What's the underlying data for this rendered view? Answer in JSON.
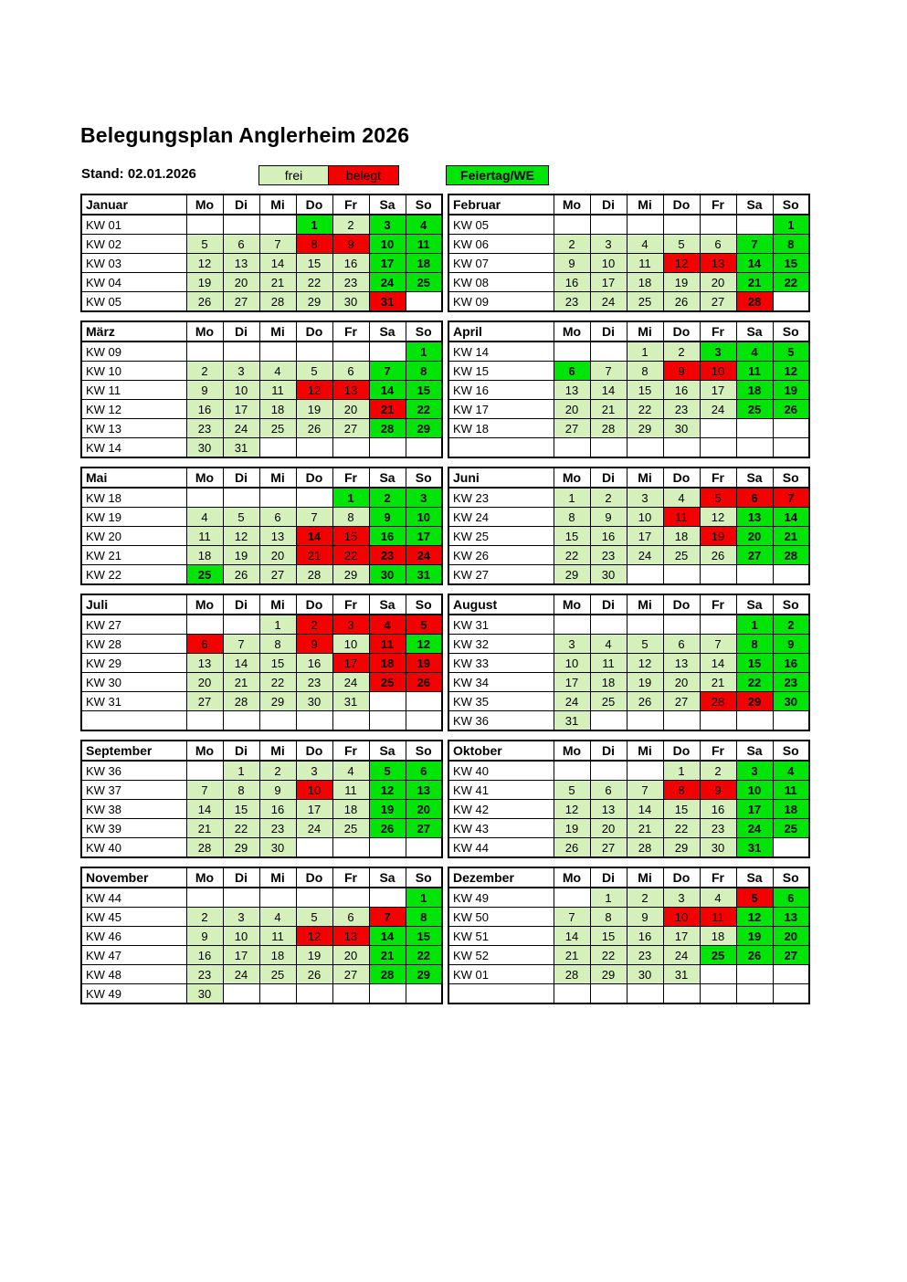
{
  "page": {
    "title": "Belegungsplan Anglerheim 2026",
    "stand": "Stand: 02.01.2026"
  },
  "legend": {
    "free_label": "frei",
    "booked_label": "belegt",
    "holiday_label": "Feiertag/WE"
  },
  "colors": {
    "free": "#d6f0bc",
    "booked": "#f40000",
    "holiday": "#00e408",
    "border": "#000000"
  },
  "day_headers": [
    "Mo",
    "Di",
    "Mi",
    "Do",
    "Fr",
    "Sa",
    "So"
  ],
  "months": [
    {
      "name": "Januar",
      "weeks": [
        {
          "kw": "KW 01",
          "cells": [
            "",
            "",
            "",
            "1h",
            "2f",
            "3h",
            "4h"
          ]
        },
        {
          "kw": "KW 02",
          "cells": [
            "5f",
            "6f",
            "7f",
            "8b",
            "9b",
            "10h",
            "11h"
          ]
        },
        {
          "kw": "KW 03",
          "cells": [
            "12f",
            "13f",
            "14f",
            "15f",
            "16f",
            "17h",
            "18h"
          ]
        },
        {
          "kw": "KW 04",
          "cells": [
            "19f",
            "20f",
            "21f",
            "22f",
            "23f",
            "24h",
            "25h"
          ]
        },
        {
          "kw": "KW 05",
          "cells": [
            "26f",
            "27f",
            "28f",
            "29f",
            "30f",
            "31b",
            ""
          ]
        }
      ]
    },
    {
      "name": "Februar",
      "weeks": [
        {
          "kw": "KW 05",
          "cells": [
            "",
            "",
            "",
            "",
            "",
            "",
            "1h"
          ]
        },
        {
          "kw": "KW 06",
          "cells": [
            "2f",
            "3f",
            "4f",
            "5f",
            "6f",
            "7h",
            "8h"
          ]
        },
        {
          "kw": "KW 07",
          "cells": [
            "9f",
            "10f",
            "11f",
            "12b",
            "13b",
            "14h",
            "15h"
          ]
        },
        {
          "kw": "KW 08",
          "cells": [
            "16f",
            "17f",
            "18f",
            "19f",
            "20f",
            "21h",
            "22h"
          ]
        },
        {
          "kw": "KW 09",
          "cells": [
            "23f",
            "24f",
            "25f",
            "26f",
            "27f",
            "28b",
            ""
          ]
        }
      ]
    },
    {
      "name": "März",
      "weeks": [
        {
          "kw": "KW 09",
          "cells": [
            "",
            "",
            "",
            "",
            "",
            "",
            "1h"
          ]
        },
        {
          "kw": "KW 10",
          "cells": [
            "2f",
            "3f",
            "4f",
            "5f",
            "6f",
            "7h",
            "8h"
          ]
        },
        {
          "kw": "KW 11",
          "cells": [
            "9f",
            "10f",
            "11f",
            "12b",
            "13b",
            "14h",
            "15h"
          ]
        },
        {
          "kw": "KW 12",
          "cells": [
            "16f",
            "17f",
            "18f",
            "19f",
            "20f",
            "21b",
            "22h"
          ]
        },
        {
          "kw": "KW 13",
          "cells": [
            "23f",
            "24f",
            "25f",
            "26f",
            "27f",
            "28h",
            "29h"
          ]
        },
        {
          "kw": "KW 14",
          "cells": [
            "30f",
            "31f",
            "",
            "",
            "",
            "",
            ""
          ]
        }
      ]
    },
    {
      "name": "April",
      "weeks": [
        {
          "kw": "KW 14",
          "cells": [
            "",
            "",
            "1f",
            "2f",
            "3h",
            "4h",
            "5h"
          ]
        },
        {
          "kw": "KW 15",
          "cells": [
            "6h",
            "7f",
            "8f",
            "9b",
            "10b",
            "11h",
            "12h"
          ]
        },
        {
          "kw": "KW 16",
          "cells": [
            "13f",
            "14f",
            "15f",
            "16f",
            "17f",
            "18h",
            "19h"
          ]
        },
        {
          "kw": "KW 17",
          "cells": [
            "20f",
            "21f",
            "22f",
            "23f",
            "24f",
            "25h",
            "26h"
          ]
        },
        {
          "kw": "KW 18",
          "cells": [
            "27f",
            "28f",
            "29f",
            "30f",
            "",
            "",
            ""
          ]
        },
        {
          "kw": "",
          "cells": [
            "",
            "",
            "",
            "",
            "",
            "",
            ""
          ]
        }
      ]
    },
    {
      "name": "Mai",
      "weeks": [
        {
          "kw": "KW 18",
          "cells": [
            "",
            "",
            "",
            "",
            "1h",
            "2h",
            "3h"
          ]
        },
        {
          "kw": "KW 19",
          "cells": [
            "4f",
            "5f",
            "6f",
            "7f",
            "8f",
            "9h",
            "10h"
          ]
        },
        {
          "kw": "KW 20",
          "cells": [
            "11f",
            "12f",
            "13f",
            "14b!",
            "15b",
            "16h",
            "17h"
          ]
        },
        {
          "kw": "KW 21",
          "cells": [
            "18f",
            "19f",
            "20f",
            "21b",
            "22b",
            "23b",
            "24b"
          ]
        },
        {
          "kw": "KW 22",
          "cells": [
            "25h",
            "26f",
            "27f",
            "28f",
            "29f",
            "30h",
            "31h"
          ]
        }
      ]
    },
    {
      "name": "Juni",
      "weeks": [
        {
          "kw": "KW 23",
          "cells": [
            "1f",
            "2f",
            "3f",
            "4f",
            "5b",
            "6b",
            "7b"
          ]
        },
        {
          "kw": "KW 24",
          "cells": [
            "8f",
            "9f",
            "10f",
            "11b",
            "12f",
            "13h",
            "14h"
          ]
        },
        {
          "kw": "KW 25",
          "cells": [
            "15f",
            "16f",
            "17f",
            "18f",
            "19b",
            "20h",
            "21h"
          ]
        },
        {
          "kw": "KW 26",
          "cells": [
            "22f",
            "23f",
            "24f",
            "25f",
            "26f",
            "27h",
            "28h"
          ]
        },
        {
          "kw": "KW 27",
          "cells": [
            "29f",
            "30f",
            "",
            "",
            "",
            "",
            ""
          ]
        }
      ]
    },
    {
      "name": "Juli",
      "weeks": [
        {
          "kw": "KW 27",
          "cells": [
            "",
            "",
            "1f",
            "2b",
            "3b",
            "4b",
            "5b"
          ]
        },
        {
          "kw": "KW 28",
          "cells": [
            "6b",
            "7f",
            "8f",
            "9b",
            "10f",
            "11b",
            "12h"
          ]
        },
        {
          "kw": "KW 29",
          "cells": [
            "13f",
            "14f",
            "15f",
            "16f",
            "17b",
            "18b",
            "19b"
          ]
        },
        {
          "kw": "KW 30",
          "cells": [
            "20f",
            "21f",
            "22f",
            "23f",
            "24f",
            "25b",
            "26b"
          ]
        },
        {
          "kw": "KW 31",
          "cells": [
            "27f",
            "28f",
            "29f",
            "30f",
            "31f",
            "",
            ""
          ]
        },
        {
          "kw": "",
          "cells": [
            "",
            "",
            "",
            "",
            "",
            "",
            ""
          ]
        }
      ]
    },
    {
      "name": "August",
      "weeks": [
        {
          "kw": "KW 31",
          "cells": [
            "",
            "",
            "",
            "",
            "",
            "1h",
            "2h"
          ]
        },
        {
          "kw": "KW 32",
          "cells": [
            "3f",
            "4f",
            "5f",
            "6f",
            "7f",
            "8h",
            "9h"
          ]
        },
        {
          "kw": "KW 33",
          "cells": [
            "10f",
            "11f",
            "12f",
            "13f",
            "14f",
            "15h",
            "16h"
          ]
        },
        {
          "kw": "KW 34",
          "cells": [
            "17f",
            "18f",
            "19f",
            "20f",
            "21f",
            "22h",
            "23h"
          ]
        },
        {
          "kw": "KW 35",
          "cells": [
            "24f",
            "25f",
            "26f",
            "27f",
            "28b",
            "29b",
            "30h"
          ]
        },
        {
          "kw": "KW 36",
          "cells": [
            "31f",
            "",
            "",
            "",
            "",
            "",
            ""
          ]
        }
      ]
    },
    {
      "name": "September",
      "weeks": [
        {
          "kw": "KW 36",
          "cells": [
            "",
            "1f",
            "2f",
            "3f",
            "4f",
            "5h",
            "6h"
          ]
        },
        {
          "kw": "KW 37",
          "cells": [
            "7f",
            "8f",
            "9f",
            "10b",
            "11f",
            "12h",
            "13h"
          ]
        },
        {
          "kw": "KW 38",
          "cells": [
            "14f",
            "15f",
            "16f",
            "17f",
            "18f",
            "19h",
            "20h"
          ]
        },
        {
          "kw": "KW 39",
          "cells": [
            "21f",
            "22f",
            "23f",
            "24f",
            "25f",
            "26h",
            "27h"
          ]
        },
        {
          "kw": "KW 40",
          "cells": [
            "28f",
            "29f",
            "30f",
            "",
            "",
            "",
            ""
          ]
        }
      ]
    },
    {
      "name": "Oktober",
      "weeks": [
        {
          "kw": "KW 40",
          "cells": [
            "",
            "",
            "",
            "1f",
            "2f",
            "3h",
            "4h"
          ]
        },
        {
          "kw": "KW 41",
          "cells": [
            "5f",
            "6f",
            "7f",
            "8b",
            "9b",
            "10h",
            "11h"
          ]
        },
        {
          "kw": "KW 42",
          "cells": [
            "12f",
            "13f",
            "14f",
            "15f",
            "16f",
            "17h",
            "18h"
          ]
        },
        {
          "kw": "KW 43",
          "cells": [
            "19f",
            "20f",
            "21f",
            "22f",
            "23f",
            "24h",
            "25h"
          ]
        },
        {
          "kw": "KW 44",
          "cells": [
            "26f",
            "27f",
            "28f",
            "29f",
            "30f",
            "31h",
            ""
          ]
        }
      ]
    },
    {
      "name": "November",
      "weeks": [
        {
          "kw": "KW 44",
          "cells": [
            "",
            "",
            "",
            "",
            "",
            "",
            "1h"
          ]
        },
        {
          "kw": "KW 45",
          "cells": [
            "2f",
            "3f",
            "4f",
            "5f",
            "6f",
            "7b",
            "8h"
          ]
        },
        {
          "kw": "KW 46",
          "cells": [
            "9f",
            "10f",
            "11f",
            "12b",
            "13b",
            "14h",
            "15h"
          ]
        },
        {
          "kw": "KW 47",
          "cells": [
            "16f",
            "17f",
            "18f",
            "19f",
            "20f",
            "21h",
            "22h"
          ]
        },
        {
          "kw": "KW 48",
          "cells": [
            "23f",
            "24f",
            "25f",
            "26f",
            "27f",
            "28h",
            "29h"
          ]
        },
        {
          "kw": "KW 49",
          "cells": [
            "30f",
            "",
            "",
            "",
            "",
            "",
            ""
          ]
        }
      ]
    },
    {
      "name": "Dezember",
      "weeks": [
        {
          "kw": "KW 49",
          "cells": [
            "",
            "1f",
            "2f",
            "3f",
            "4f",
            "5b",
            "6h"
          ]
        },
        {
          "kw": "KW 50",
          "cells": [
            "7f",
            "8f",
            "9f",
            "10b",
            "11b",
            "12h",
            "13h"
          ]
        },
        {
          "kw": "KW 51",
          "cells": [
            "14f",
            "15f",
            "16f",
            "17f",
            "18f",
            "19h",
            "20h"
          ]
        },
        {
          "kw": "KW 52",
          "cells": [
            "21f",
            "22f",
            "23f",
            "24f",
            "25h",
            "26h",
            "27h"
          ]
        },
        {
          "kw": "KW 01",
          "cells": [
            "28f",
            "29f",
            "30f",
            "31f",
            "",
            "",
            ""
          ]
        },
        {
          "kw": "",
          "cells": [
            "",
            "",
            "",
            "",
            "",
            "",
            ""
          ]
        }
      ]
    }
  ]
}
